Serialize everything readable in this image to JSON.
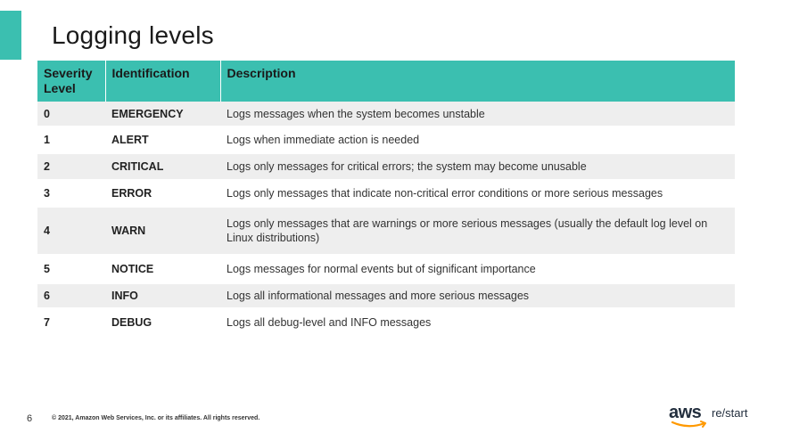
{
  "title": "Logging levels",
  "table": {
    "headers": [
      "Severity Level",
      "Identification",
      "Description"
    ],
    "rows": [
      {
        "level": "0",
        "ident": "EMERGENCY",
        "desc": "Logs messages when the system becomes unstable"
      },
      {
        "level": "1",
        "ident": "ALERT",
        "desc": "Logs when immediate action is needed"
      },
      {
        "level": "2",
        "ident": "CRITICAL",
        "desc": "Logs only messages for critical errors; the system may become unusable"
      },
      {
        "level": "3",
        "ident": "ERROR",
        "desc": "Logs only messages that indicate non-critical error conditions or more serious messages"
      },
      {
        "level": "4",
        "ident": "WARN",
        "desc": "Logs only messages that are warnings or more serious messages (usually the default log level on Linux distributions)"
      },
      {
        "level": "5",
        "ident": "NOTICE",
        "desc": "Logs messages for normal events but of significant importance"
      },
      {
        "level": "6",
        "ident": "INFO",
        "desc": "Logs all informational messages and more serious messages"
      },
      {
        "level": "7",
        "ident": "DEBUG",
        "desc": "Logs all debug-level and INFO messages"
      }
    ]
  },
  "footer": {
    "page_number": "6",
    "copyright": "© 2021, Amazon Web Services, Inc. or its affiliates. All rights reserved.",
    "logo_aws": "aws",
    "logo_restart": "re/start"
  },
  "colors": {
    "accent": "#3bbfb0",
    "row_shade": "#eeeeee",
    "logo_smile": "#ff9900"
  }
}
